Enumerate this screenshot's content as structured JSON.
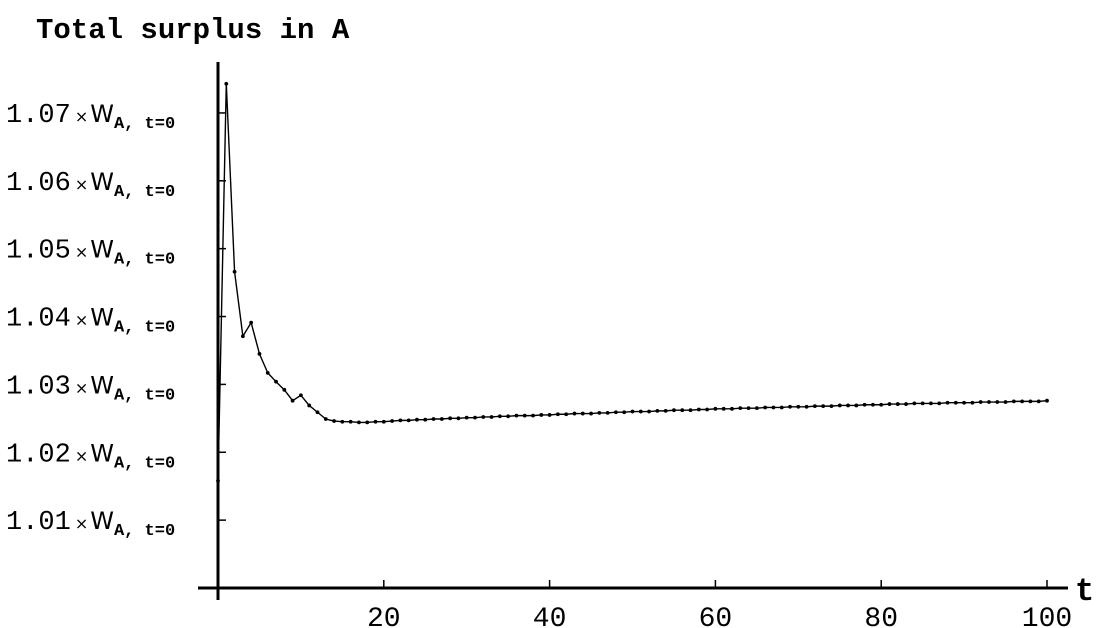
{
  "chart_data": {
    "type": "line",
    "title": "Total surplus in A",
    "xlabel": "t",
    "ylabel": "",
    "xlim": [
      0,
      100
    ],
    "ylim": [
      1.0,
      1.075
    ],
    "grid": false,
    "x_ticks": [
      20,
      40,
      60,
      80,
      100
    ],
    "x_tick_labels": [
      "20",
      "40",
      "60",
      "80",
      "100"
    ],
    "y_ticks": [
      1.01,
      1.02,
      1.03,
      1.04,
      1.05,
      1.06,
      1.07
    ],
    "y_tick_labels": [
      {
        "num": "1.07",
        "base": "W",
        "sub": "A, t=0"
      },
      {
        "num": "1.06",
        "base": "W",
        "sub": "A, t=0"
      },
      {
        "num": "1.05",
        "base": "W",
        "sub": "A, t=0"
      },
      {
        "num": "1.04",
        "base": "W",
        "sub": "A, t=0"
      },
      {
        "num": "1.03",
        "base": "W",
        "sub": "A, t=0"
      },
      {
        "num": "1.02",
        "base": "W",
        "sub": "A, t=0"
      },
      {
        "num": "1.01",
        "base": "W",
        "sub": "A, t=0"
      }
    ],
    "series": [
      {
        "color": "#000000",
        "x": [
          0,
          1,
          2,
          3,
          4,
          5,
          6,
          7,
          8,
          9,
          10,
          11,
          12,
          13,
          14,
          15,
          16,
          17,
          18,
          19,
          20,
          21,
          22,
          23,
          24,
          25,
          26,
          27,
          28,
          29,
          30,
          31,
          32,
          33,
          34,
          35,
          36,
          37,
          38,
          39,
          40,
          41,
          42,
          43,
          44,
          45,
          46,
          47,
          48,
          49,
          50,
          51,
          52,
          53,
          54,
          55,
          56,
          57,
          58,
          59,
          60,
          61,
          62,
          63,
          64,
          65,
          66,
          67,
          68,
          69,
          70,
          71,
          72,
          73,
          74,
          75,
          76,
          77,
          78,
          79,
          80,
          81,
          82,
          83,
          84,
          85,
          86,
          87,
          88,
          89,
          90,
          91,
          92,
          93,
          94,
          95,
          96,
          97,
          98,
          99,
          100
        ],
        "y": [
          1.0158,
          1.0743,
          1.0466,
          1.0371,
          1.0391,
          1.0345,
          1.0317,
          1.0304,
          1.0292,
          1.0276,
          1.0284,
          1.0269,
          1.0259,
          1.0249,
          1.0246,
          1.0245,
          1.0245,
          1.0244,
          1.0244,
          1.0245,
          1.0245,
          1.0246,
          1.0247,
          1.0247,
          1.0248,
          1.0248,
          1.0249,
          1.0249,
          1.025,
          1.025,
          1.0251,
          1.0251,
          1.0252,
          1.0252,
          1.0253,
          1.0253,
          1.0254,
          1.0254,
          1.0254,
          1.0255,
          1.0255,
          1.0256,
          1.0256,
          1.0257,
          1.0257,
          1.0257,
          1.0258,
          1.0258,
          1.0259,
          1.0259,
          1.026,
          1.026,
          1.026,
          1.0261,
          1.0261,
          1.0262,
          1.0262,
          1.0262,
          1.0263,
          1.0263,
          1.0264,
          1.0264,
          1.0264,
          1.0265,
          1.0265,
          1.0265,
          1.0266,
          1.0266,
          1.0266,
          1.0267,
          1.0267,
          1.0267,
          1.0268,
          1.0268,
          1.0268,
          1.0269,
          1.0269,
          1.0269,
          1.027,
          1.027,
          1.027,
          1.0271,
          1.0271,
          1.0271,
          1.0272,
          1.0272,
          1.0272,
          1.0272,
          1.0273,
          1.0273,
          1.0273,
          1.0273,
          1.0274,
          1.0274,
          1.0274,
          1.0274,
          1.0275,
          1.0275,
          1.0275,
          1.0275,
          1.0276
        ]
      }
    ]
  }
}
